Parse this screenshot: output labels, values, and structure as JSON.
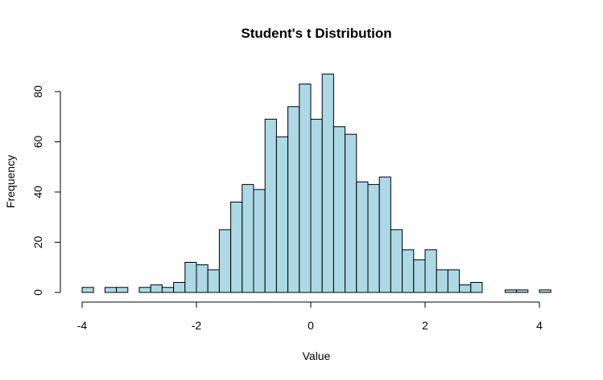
{
  "chart_data": {
    "type": "bar",
    "title": "Student's t Distribution",
    "xlabel": "Value",
    "ylabel": "Frequency",
    "bar_color": "#add8e6",
    "edge_color": "#000000",
    "bin_width": 0.2,
    "xlim": [
      -4.2,
      4.2
    ],
    "ylim": [
      0,
      90
    ],
    "x_ticks": [
      -4,
      -2,
      0,
      2,
      4
    ],
    "x_tick_labels": [
      "-4",
      "-2",
      "0",
      "2",
      "4"
    ],
    "y_ticks": [
      0,
      20,
      40,
      60,
      80
    ],
    "y_tick_labels": [
      "0",
      "20",
      "40",
      "60",
      "80"
    ],
    "bins": [
      {
        "start": -4.0,
        "end": -3.8,
        "value": 2
      },
      {
        "start": -3.6,
        "end": -3.4,
        "value": 2
      },
      {
        "start": -3.4,
        "end": -3.2,
        "value": 2
      },
      {
        "start": -3.0,
        "end": -2.8,
        "value": 2
      },
      {
        "start": -2.8,
        "end": -2.6,
        "value": 3
      },
      {
        "start": -2.6,
        "end": -2.4,
        "value": 2
      },
      {
        "start": -2.4,
        "end": -2.2,
        "value": 4
      },
      {
        "start": -2.2,
        "end": -2.0,
        "value": 12
      },
      {
        "start": -2.0,
        "end": -1.8,
        "value": 11
      },
      {
        "start": -1.8,
        "end": -1.6,
        "value": 9
      },
      {
        "start": -1.6,
        "end": -1.4,
        "value": 25
      },
      {
        "start": -1.4,
        "end": -1.2,
        "value": 36
      },
      {
        "start": -1.2,
        "end": -1.0,
        "value": 43
      },
      {
        "start": -1.0,
        "end": -0.8,
        "value": 41
      },
      {
        "start": -0.8,
        "end": -0.6,
        "value": 69
      },
      {
        "start": -0.6,
        "end": -0.4,
        "value": 62
      },
      {
        "start": -0.4,
        "end": -0.2,
        "value": 74
      },
      {
        "start": -0.2,
        "end": 0.0,
        "value": 83
      },
      {
        "start": 0.0,
        "end": 0.2,
        "value": 69
      },
      {
        "start": 0.2,
        "end": 0.4,
        "value": 87
      },
      {
        "start": 0.4,
        "end": 0.6,
        "value": 66
      },
      {
        "start": 0.6,
        "end": 0.8,
        "value": 63
      },
      {
        "start": 0.8,
        "end": 1.0,
        "value": 44
      },
      {
        "start": 1.0,
        "end": 1.2,
        "value": 43
      },
      {
        "start": 1.2,
        "end": 1.4,
        "value": 46
      },
      {
        "start": 1.4,
        "end": 1.6,
        "value": 25
      },
      {
        "start": 1.6,
        "end": 1.8,
        "value": 17
      },
      {
        "start": 1.8,
        "end": 2.0,
        "value": 13
      },
      {
        "start": 2.0,
        "end": 2.2,
        "value": 17
      },
      {
        "start": 2.2,
        "end": 2.4,
        "value": 9
      },
      {
        "start": 2.4,
        "end": 2.6,
        "value": 9
      },
      {
        "start": 2.6,
        "end": 2.8,
        "value": 3
      },
      {
        "start": 2.8,
        "end": 3.0,
        "value": 4
      },
      {
        "start": 3.4,
        "end": 3.6,
        "value": 1
      },
      {
        "start": 3.6,
        "end": 3.8,
        "value": 1
      },
      {
        "start": 4.0,
        "end": 4.2,
        "value": 1
      }
    ]
  }
}
